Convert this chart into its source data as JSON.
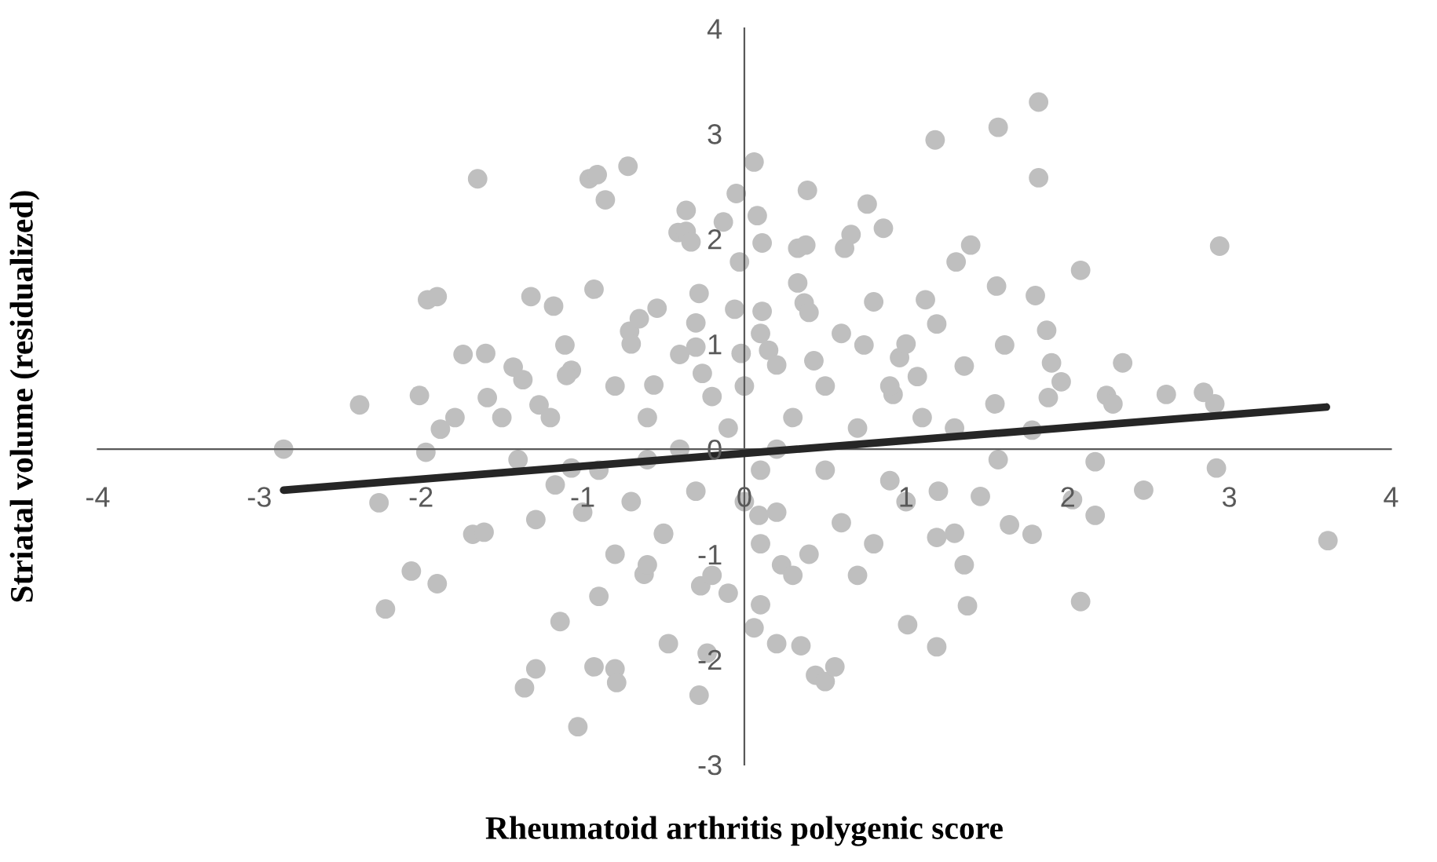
{
  "chart_data": {
    "type": "scatter",
    "xlabel": "Rheumatoid arthritis polygenic score",
    "ylabel": "Striatal volume (residualized)",
    "xlim": [
      -4,
      4
    ],
    "ylim": [
      -3,
      4
    ],
    "xticks": [
      -4,
      -3,
      -2,
      -1,
      0,
      1,
      2,
      3,
      4
    ],
    "yticks": [
      -3,
      -2,
      -1,
      0,
      1,
      2,
      3,
      4
    ],
    "grid": false,
    "legend": false,
    "marker": "circle",
    "series": [
      {
        "color": "#bfbfbf",
        "x": [
          -2.85,
          -2.38,
          -2.26,
          -2.22,
          -2.06,
          -2.01,
          -1.96,
          -1.9,
          -1.9,
          -1.97,
          -1.88,
          -1.79,
          -1.65,
          -1.59,
          -1.74,
          -1.6,
          -1.68,
          -1.61,
          -1.43,
          -1.37,
          -1.32,
          -1.29,
          -1.36,
          -1.29,
          -1.27,
          -1.17,
          -1.18,
          -1.11,
          -1.14,
          -1.07,
          -1.03,
          -0.93,
          -0.96,
          -0.91,
          -0.86,
          -1.07,
          -0.8,
          -0.79,
          -0.93,
          -0.72,
          -0.71,
          -0.65,
          -0.62,
          -0.56,
          -0.54,
          -0.5,
          -0.47,
          -0.41,
          -0.36,
          -0.36,
          -0.33,
          -0.28,
          -0.3,
          -0.26,
          -0.27,
          -0.23,
          -0.28,
          -0.13,
          -0.1,
          -0.05,
          -0.03,
          -0.06,
          -0.02,
          0.06,
          0.08,
          0.11,
          0.11,
          0.15,
          0.06,
          0.1,
          0.2,
          0.23,
          0.09,
          0.33,
          0.37,
          0.39,
          0.33,
          0.38,
          0.43,
          0.35,
          0.44,
          0.5,
          0.56,
          0.66,
          0.62,
          0.76,
          0.74,
          0.86,
          0.96,
          0.92,
          1.01,
          1.07,
          1.12,
          1.18,
          1.19,
          1.31,
          1.36,
          1.4,
          1.19,
          1.19,
          1.36,
          1.38,
          1.46,
          1.57,
          1.61,
          1.55,
          1.56,
          1.64,
          1.82,
          1.57,
          1.82,
          1.8,
          1.78,
          1.87,
          1.9,
          1.78,
          1.88,
          1.96,
          2.08,
          2.08,
          2.17,
          2.17,
          2.24,
          2.28,
          2.34,
          2.47,
          2.61,
          2.84,
          2.91,
          2.92,
          2.94,
          3.61,
          2.03,
          -0.8,
          -0.6,
          -0.4,
          -0.2,
          -0.1,
          0.1,
          0.3,
          0.5,
          0.7,
          0.9,
          -0.9,
          -0.7,
          -0.5,
          -0.3,
          0.1,
          0.2,
          0.4,
          0.6,
          0.8,
          1.0,
          -1.2,
          -1.0,
          -0.8,
          -0.6,
          -0.2,
          0.0,
          0.3,
          0.5,
          0.7,
          0.9,
          1.1,
          1.2,
          -1.4,
          -1.5,
          -0.4,
          0.2,
          0.6,
          0.8,
          -0.7,
          -0.3,
          0.1,
          0.4,
          -1.1,
          1.3,
          1.0,
          -0.9,
          0.0,
          0.2,
          -0.6,
          1.3
        ],
        "values": [
          0.0,
          0.42,
          -0.51,
          -1.52,
          -1.16,
          0.51,
          1.42,
          1.45,
          -1.28,
          -0.03,
          0.19,
          0.3,
          2.57,
          0.49,
          0.9,
          0.91,
          -0.81,
          -0.79,
          0.78,
          0.66,
          1.45,
          -0.67,
          -2.27,
          -2.09,
          0.42,
          -0.34,
          1.36,
          0.99,
          -1.64,
          0.75,
          -2.64,
          1.52,
          2.57,
          2.61,
          2.37,
          -0.18,
          -2.09,
          -2.22,
          -2.07,
          2.69,
          1.12,
          1.24,
          -1.19,
          0.61,
          1.34,
          -0.81,
          -1.85,
          2.06,
          2.27,
          2.07,
          1.97,
          1.48,
          0.97,
          0.72,
          -1.3,
          -1.94,
          -2.34,
          2.16,
          -1.37,
          2.43,
          1.78,
          1.33,
          0.91,
          2.73,
          2.22,
          1.96,
          1.31,
          0.94,
          -1.7,
          -1.48,
          -1.85,
          -1.1,
          -0.63,
          1.58,
          1.39,
          2.46,
          1.91,
          1.94,
          0.84,
          -1.87,
          -2.15,
          -2.21,
          -2.07,
          2.04,
          1.91,
          2.33,
          0.99,
          2.1,
          0.87,
          0.52,
          -1.67,
          0.69,
          1.42,
          2.94,
          1.19,
          1.78,
          0.79,
          1.94,
          -0.84,
          -1.88,
          -1.1,
          -1.49,
          -0.45,
          -0.1,
          0.99,
          0.43,
          1.55,
          -0.72,
          3.3,
          3.06,
          2.58,
          1.46,
          0.18,
          1.13,
          0.82,
          -0.81,
          0.49,
          0.64,
          1.7,
          -1.45,
          -0.12,
          -0.63,
          0.51,
          0.43,
          0.82,
          -0.39,
          0.52,
          0.54,
          0.43,
          -0.18,
          1.93,
          -0.87,
          -0.48,
          0.6,
          0.3,
          0.9,
          0.5,
          0.2,
          -0.2,
          0.3,
          0.6,
          0.2,
          -0.3,
          -0.2,
          -0.5,
          -0.8,
          -0.4,
          -0.9,
          -0.6,
          -1.0,
          -0.7,
          -0.9,
          -0.5,
          0.3,
          -0.6,
          -1.0,
          -1.1,
          -1.2,
          -0.5,
          -1.2,
          -0.2,
          -1.2,
          0.6,
          0.3,
          -0.4,
          -0.1,
          0.3,
          0.0,
          0.8,
          1.1,
          1.4,
          1.0,
          1.2,
          1.1,
          1.3,
          0.7,
          0.2,
          1.0,
          -1.4,
          0.6,
          0.0,
          -0.1,
          -0.8
        ]
      },
      {
        "type": "line",
        "color": "#262626",
        "marker": "none",
        "x": [
          -2.85,
          3.6
        ],
        "values": [
          -0.39,
          0.4
        ]
      }
    ]
  }
}
